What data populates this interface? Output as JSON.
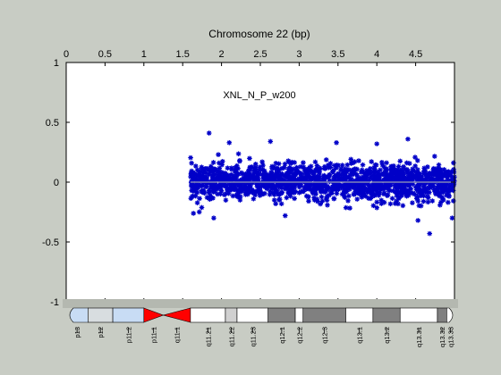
{
  "chart_data": {
    "type": "scatter",
    "title": "Chromosome 22 (bp)",
    "annotation": "XNL_N_P_w200",
    "x_axis_position": "top",
    "xlim": [
      0,
      5.0
    ],
    "ylim": [
      -1,
      1
    ],
    "xticks": [
      0,
      0.5,
      1,
      1.5,
      2,
      2.5,
      3,
      3.5,
      4,
      4.5
    ],
    "xtick_labels": [
      "0",
      "0.5",
      "1",
      "1.5",
      "2",
      "2.5",
      "3",
      "3.5",
      "4",
      "4.5"
    ],
    "yticks": [
      1,
      0.5,
      0,
      -0.5,
      -1
    ],
    "ytick_labels": [
      "1",
      "0.5",
      "0",
      "-0.5",
      "-1"
    ],
    "grid": false,
    "series": [
      {
        "color": "#0000c8",
        "marker": "star",
        "x_range": [
          1.6,
          5.0
        ],
        "typical_y_range": [
          -0.15,
          0.15
        ],
        "outlier_points": [
          {
            "x": 1.84,
            "y": 0.41
          },
          {
            "x": 2.1,
            "y": 0.33
          },
          {
            "x": 2.63,
            "y": 0.34
          },
          {
            "x": 3.48,
            "y": 0.33
          },
          {
            "x": 4.0,
            "y": 0.32
          },
          {
            "x": 4.4,
            "y": 0.36
          },
          {
            "x": 4.68,
            "y": -0.43
          },
          {
            "x": 4.97,
            "y": -0.3
          },
          {
            "x": 1.9,
            "y": -0.3
          },
          {
            "x": 2.82,
            "y": -0.28
          },
          {
            "x": 4.53,
            "y": -0.32
          }
        ]
      }
    ],
    "reference_line": {
      "y": 0,
      "x_range": [
        1.6,
        5.0
      ],
      "color": "#9aa0b4"
    }
  },
  "ideogram": {
    "bands": [
      {
        "label": "p13",
        "start": 0.0,
        "end": 0.28,
        "type": "p-arm",
        "color": "#c8dcf4"
      },
      {
        "label": "p12",
        "start": 0.28,
        "end": 0.6,
        "type": "p-arm",
        "color": "#d8dde0"
      },
      {
        "label": "p11.2",
        "start": 0.6,
        "end": 1.0,
        "type": "p-arm",
        "color": "#c8dcf4"
      },
      {
        "label": "p11.1",
        "start": 1.0,
        "end": 1.25,
        "type": "centromere",
        "color": "#ff0000"
      },
      {
        "label": "q11.1",
        "start": 1.25,
        "end": 1.6,
        "type": "centromere",
        "color": "#ff0000"
      },
      {
        "label": "q11.21",
        "start": 1.6,
        "end": 2.05,
        "type": "q-arm",
        "color": "#ffffff"
      },
      {
        "label": "q11.22",
        "start": 2.05,
        "end": 2.2,
        "type": "q-arm",
        "color": "#d0d0d0"
      },
      {
        "label": "q11.23",
        "start": 2.2,
        "end": 2.6,
        "type": "q-arm",
        "color": "#ffffff"
      },
      {
        "label": "q12.1",
        "start": 2.6,
        "end": 2.95,
        "type": "q-arm",
        "color": "#808080"
      },
      {
        "label": "q12.2",
        "start": 2.95,
        "end": 3.05,
        "type": "q-arm",
        "color": "#ffffff"
      },
      {
        "label": "q12.3",
        "start": 3.05,
        "end": 3.6,
        "type": "q-arm",
        "color": "#808080"
      },
      {
        "label": "q13.1",
        "start": 3.6,
        "end": 3.95,
        "type": "q-arm",
        "color": "#ffffff"
      },
      {
        "label": "q13.2",
        "start": 3.95,
        "end": 4.3,
        "type": "q-arm",
        "color": "#808080"
      },
      {
        "label": "q13.31",
        "start": 4.3,
        "end": 4.78,
        "type": "q-arm",
        "color": "#ffffff"
      },
      {
        "label": "q13.32",
        "start": 4.78,
        "end": 4.9,
        "type": "q-arm",
        "color": "#808080"
      },
      {
        "label": "q13.33",
        "start": 4.9,
        "end": 5.0,
        "type": "q-arm",
        "color": "#ffffff"
      }
    ]
  }
}
